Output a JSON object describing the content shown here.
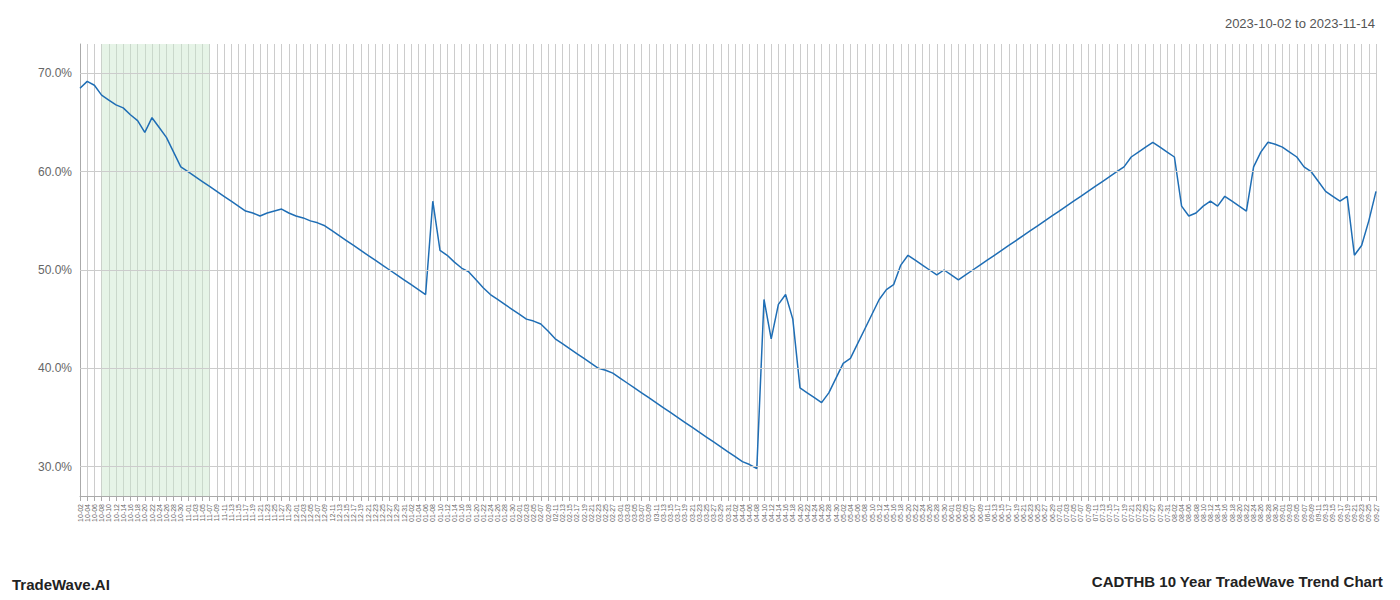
{
  "chart_data": {
    "type": "line",
    "title": "CADTHB 10 Year TradeWave Trend Chart",
    "subtitle": "2023-10-02 to 2023-11-14",
    "annotations": [
      "TradeWave.AI"
    ],
    "categories": [
      "10-02",
      "10-04",
      "10-06",
      "10-08",
      "10-10",
      "10-12",
      "10-14",
      "10-16",
      "10-18",
      "10-20",
      "10-22",
      "10-24",
      "10-26",
      "10-28",
      "10-30",
      "11-01",
      "11-03",
      "11-05",
      "11-07",
      "11-09",
      "11-11",
      "11-13",
      "11-15",
      "11-17",
      "11-19",
      "11-21",
      "11-23",
      "11-25",
      "11-27",
      "11-29",
      "12-01",
      "12-03",
      "12-05",
      "12-07",
      "12-09",
      "12-11",
      "12-13",
      "12-15",
      "12-17",
      "12-19",
      "12-21",
      "12-23",
      "12-25",
      "12-27",
      "12-29",
      "12-31",
      "01-02",
      "01-04",
      "01-06",
      "01-08",
      "01-10",
      "01-12",
      "01-14",
      "01-16",
      "01-18",
      "01-20",
      "01-22",
      "01-24",
      "01-26",
      "01-28",
      "01-30",
      "02-01",
      "02-03",
      "02-05",
      "02-07",
      "02-09",
      "02-11",
      "02-13",
      "02-15",
      "02-17",
      "02-19",
      "02-21",
      "02-23",
      "02-25",
      "02-27",
      "03-01",
      "03-03",
      "03-05",
      "03-07",
      "03-09",
      "03-11",
      "03-13",
      "03-15",
      "03-17",
      "03-19",
      "03-21",
      "03-23",
      "03-25",
      "03-27",
      "03-29",
      "03-31",
      "04-02",
      "04-04",
      "04-06",
      "04-08",
      "04-10",
      "04-12",
      "04-14",
      "04-16",
      "04-18",
      "04-20",
      "04-22",
      "04-24",
      "04-26",
      "04-28",
      "04-30",
      "05-02",
      "05-04",
      "05-06",
      "05-08",
      "05-10",
      "05-12",
      "05-14",
      "05-16",
      "05-18",
      "05-20",
      "05-22",
      "05-24",
      "05-26",
      "05-28",
      "05-30",
      "06-01",
      "06-03",
      "06-05",
      "06-07",
      "06-09",
      "06-11",
      "06-13",
      "06-15",
      "06-17",
      "06-19",
      "06-21",
      "06-23",
      "06-25",
      "06-27",
      "06-29",
      "07-01",
      "07-03",
      "07-05",
      "07-07",
      "07-09",
      "07-11",
      "07-13",
      "07-15",
      "07-17",
      "07-19",
      "07-21",
      "07-23",
      "07-25",
      "07-27",
      "07-29",
      "07-31",
      "08-02",
      "08-04",
      "08-06",
      "08-08",
      "08-10",
      "08-12",
      "08-14",
      "08-16",
      "08-18",
      "08-20",
      "08-22",
      "08-24",
      "08-26",
      "08-28",
      "08-30",
      "09-01",
      "09-03",
      "09-05",
      "09-07",
      "09-09",
      "09-11",
      "09-13",
      "09-15",
      "09-17",
      "09-19",
      "09-21",
      "09-23",
      "09-25",
      "09-27"
    ],
    "values": [
      68.5,
      69.2,
      68.8,
      67.8,
      67.3,
      66.8,
      66.5,
      65.8,
      65.2,
      64.0,
      65.5,
      64.5,
      63.5,
      62.0,
      60.5,
      60.0,
      59.5,
      59.0,
      58.5,
      58.0,
      57.5,
      57.0,
      56.5,
      56.0,
      55.8,
      55.5,
      55.8,
      56.0,
      56.2,
      55.8,
      55.5,
      55.3,
      55.0,
      54.8,
      54.5,
      54.0,
      53.5,
      53.0,
      52.5,
      52.0,
      51.5,
      51.0,
      50.5,
      50.0,
      49.5,
      49.0,
      48.5,
      48.0,
      47.5,
      57.0,
      52.0,
      51.5,
      50.8,
      50.2,
      49.8,
      49.0,
      48.2,
      47.5,
      47.0,
      46.5,
      46.0,
      45.5,
      45.0,
      44.8,
      44.5,
      43.8,
      43.0,
      42.5,
      42.0,
      41.5,
      41.0,
      40.5,
      40.0,
      39.8,
      39.5,
      39.0,
      38.5,
      38.0,
      37.5,
      37.0,
      36.5,
      36.0,
      35.5,
      35.0,
      34.5,
      34.0,
      33.5,
      33.0,
      32.5,
      32.0,
      31.5,
      31.0,
      30.5,
      30.2,
      29.8,
      47.0,
      43.0,
      46.5,
      47.5,
      45.0,
      38.0,
      37.5,
      37.0,
      36.5,
      37.5,
      39.0,
      40.5,
      41.0,
      42.5,
      44.0,
      45.5,
      47.0,
      48.0,
      48.5,
      50.5,
      51.5,
      51.0,
      50.5,
      50.0,
      49.5,
      50.0,
      49.5,
      49.0,
      49.5,
      50.0,
      50.5,
      51.0,
      51.5,
      52.0,
      52.5,
      53.0,
      53.5,
      54.0,
      54.5,
      55.0,
      55.5,
      56.0,
      56.5,
      57.0,
      57.5,
      58.0,
      58.5,
      59.0,
      59.5,
      60.0,
      60.5,
      61.5,
      62.0,
      62.5,
      63.0,
      62.5,
      62.0,
      61.5,
      56.5,
      55.5,
      55.8,
      56.5,
      57.0,
      56.5,
      57.5,
      57.0,
      56.5,
      56.0,
      60.5,
      62.0,
      63.0,
      62.8,
      62.5,
      62.0,
      61.5,
      60.5,
      60.0,
      59.0,
      58.0,
      57.5,
      57.0,
      57.5,
      51.5,
      52.5,
      55.0,
      58.0
    ],
    "color": "#1f6eb5",
    "shaded_span": {
      "start": "10-08",
      "end": "11-07",
      "color": "#c8e6c9"
    },
    "ylim": [
      27,
      73
    ],
    "yticks": [
      {
        "value": 30.0,
        "label": "30.0%"
      },
      {
        "value": 40.0,
        "label": "40.0%"
      },
      {
        "value": 50.0,
        "label": "50.0%"
      },
      {
        "value": 60.0,
        "label": "60.0%"
      },
      {
        "value": 70.0,
        "label": "70.0%"
      }
    ],
    "grid": true
  }
}
